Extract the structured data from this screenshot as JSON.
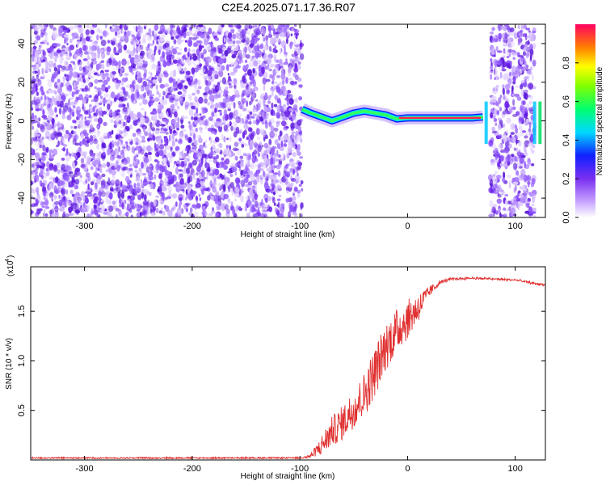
{
  "title": "C2E4.2025.071.17.36.R07",
  "colors": {
    "spectro_purple": "#7a3cf0",
    "snr_line": "#e03030",
    "axis": "#000000"
  },
  "chart_data": [
    {
      "type": "heatmap",
      "xlabel": "Height of straight line (km)",
      "ylabel": "Frequency (Hz)",
      "xlim": [
        -350,
        128
      ],
      "ylim": [
        -50,
        50
      ],
      "x_ticks": [
        -300,
        -200,
        -100,
        0,
        100
      ],
      "x_tick_labels": [
        "-300",
        "-200",
        "-100",
        "0",
        "100"
      ],
      "y_ticks": [
        -40,
        -20,
        0,
        20,
        40
      ],
      "y_tick_labels": [
        "-40",
        "-20",
        "0",
        "20",
        "40"
      ],
      "colorbar": {
        "label": "Normalized spectral amplitude",
        "ticks": [
          0,
          0.2,
          0.4,
          0.6,
          0.8
        ],
        "tick_labels": [
          "0.0",
          "0.2",
          "0.4",
          "0.6",
          "0.8"
        ],
        "range": [
          0,
          1
        ]
      },
      "noise_regions": [
        [
          -350,
          -98
        ],
        [
          77,
          118
        ]
      ],
      "signal_track": {
        "x": [
          -98,
          -90,
          -80,
          -70,
          -60,
          -50,
          -40,
          -30,
          -20,
          -10,
          0,
          20,
          40,
          60,
          70
        ],
        "freq": [
          6,
          4,
          2,
          0,
          2,
          4,
          5,
          4,
          3,
          1,
          1.5,
          1.5,
          1.5,
          1.5,
          2
        ]
      }
    },
    {
      "type": "line",
      "xlabel": "Height of straight line (km)",
      "ylabel": "SNR (10 * v/v)",
      "y_scale_label": "(x10",
      "y_scale_exponent": "4",
      "xlim": [
        -350,
        128
      ],
      "ylim": [
        0,
        1.95
      ],
      "x_ticks": [
        -300,
        -200,
        -100,
        0,
        100
      ],
      "x_tick_labels": [
        "-300",
        "-200",
        "-100",
        "0",
        "100"
      ],
      "y_ticks": [
        0.5,
        1.0,
        1.5
      ],
      "y_tick_labels": [
        "0.5",
        "1.0",
        "1.5"
      ],
      "series": [
        {
          "x": [
            -350,
            -200,
            -110,
            -100,
            -90,
            -80,
            -70,
            -60,
            -50,
            -40,
            -30,
            -20,
            -10,
            0,
            10,
            20,
            30,
            40,
            60,
            80,
            100,
            110,
            115,
            128
          ],
          "y": [
            0.02,
            0.02,
            0.02,
            0.02,
            0.05,
            0.18,
            0.35,
            0.45,
            0.6,
            0.75,
            1.0,
            1.25,
            1.4,
            1.5,
            1.6,
            1.72,
            1.8,
            1.83,
            1.84,
            1.83,
            1.82,
            1.8,
            1.79,
            1.77
          ],
          "spread": [
            0,
            0,
            0,
            0,
            0.05,
            0.2,
            0.3,
            0.35,
            0.4,
            0.45,
            0.5,
            0.5,
            0.45,
            0.4,
            0.3,
            0.12,
            0.04,
            0.02,
            0.02,
            0.02,
            0.02,
            0.02,
            0.02,
            0.02
          ]
        }
      ]
    }
  ]
}
